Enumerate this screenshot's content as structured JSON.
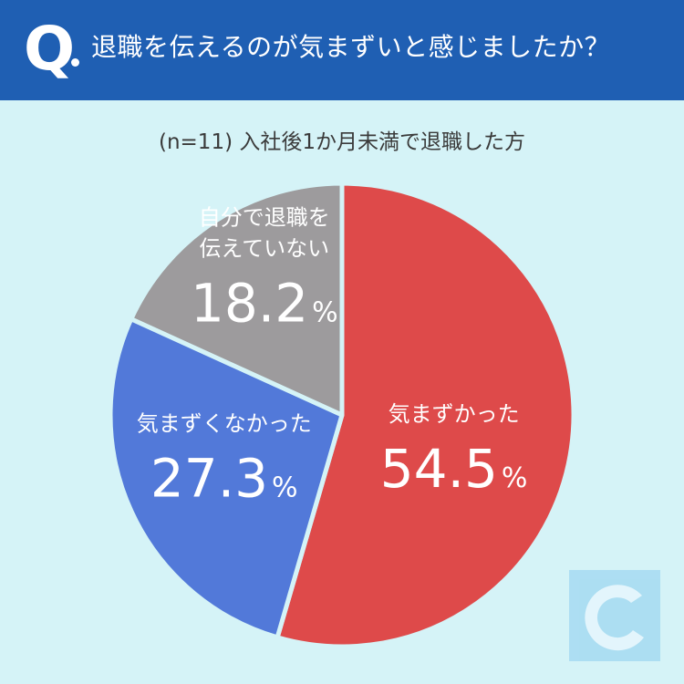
{
  "header": {
    "q_mark": "Q",
    "question": "退職を伝えるのが気まずいと感じましたか？"
  },
  "subtitle": "(n=11) 入社後1か月未満で退職した方",
  "colors": {
    "header_bg": "#1f5fb3",
    "background": "#d5f3f7",
    "red": "#de4a4a",
    "blue": "#5279d9",
    "gray": "#9d9b9d"
  },
  "logo": {
    "icon": "c-logo-icon"
  },
  "chart_data": {
    "type": "pie",
    "start": "12 o'clock, clockwise",
    "slices": [
      {
        "label": "気まずかった",
        "value": 54.5,
        "percent_label": "54.5",
        "color": "#de4a4a"
      },
      {
        "label": "気まずくなかった",
        "value": 27.3,
        "percent_label": "27.3",
        "color": "#5279d9"
      },
      {
        "label": "自分で退職を伝えていない",
        "value": 18.2,
        "percent_label": "18.2",
        "color": "#9d9b9d",
        "label_lines": [
          "自分で退職を",
          "伝えていない"
        ]
      }
    ],
    "unit": "%"
  }
}
